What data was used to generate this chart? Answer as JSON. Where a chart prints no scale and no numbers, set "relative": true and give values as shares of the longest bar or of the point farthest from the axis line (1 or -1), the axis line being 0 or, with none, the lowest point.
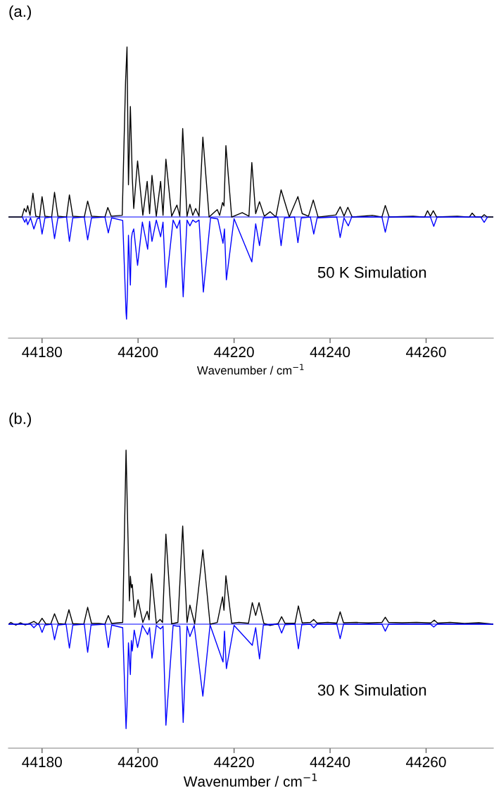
{
  "chart_data": [
    {
      "type": "line",
      "title": "(a.)",
      "xlabel": "Wavenumber / cm$^{−1}$",
      "relative": true,
      "annotations": [
        "50 K Simulation"
      ],
      "xlim": [
        44173,
        44274
      ],
      "xticks": [
        44180,
        44200,
        44220,
        44240,
        44260
      ],
      "series": [
        {
          "color": "#000000",
          "x": [
            44173,
            44175.8,
            44176.3,
            44176.7,
            44177.0,
            44177.5,
            44178.1,
            44178.7,
            44179.5,
            44180.0,
            44180.6,
            44182.0,
            44182.6,
            44183.3,
            44185.1,
            44185.7,
            44186.4,
            44188.8,
            44189.5,
            44190.3,
            44193.1,
            44193.7,
            44194.4,
            44196.7,
            44197.4,
            44197.7,
            44198.0,
            44198.4,
            44198.8,
            44199.1,
            44199.9,
            44201.0,
            44201.9,
            44202.4,
            44202.9,
            44203.8,
            44204.7,
            44205.2,
            44205.8,
            44207.0,
            44208.1,
            44208.7,
            44209.3,
            44210.2,
            44210.8,
            44211.4,
            44212.0,
            44212.7,
            44213.5,
            44214.8,
            44216.5,
            44217.0,
            44217.6,
            44217.9,
            44218.3,
            44219.5,
            44221.7,
            44223.1,
            44223.7,
            44224.5,
            44225.3,
            44226.3,
            44227.5,
            44228.7,
            44229.8,
            44231.5,
            44233.3,
            44234.2,
            44235.5,
            44236.5,
            44237.5,
            44241.2,
            44242.1,
            44242.9,
            44243.7,
            44244.6,
            44248.8,
            44250.8,
            44251.5,
            44252.3,
            44257.3,
            44259.7,
            44260.3,
            44260.9,
            44261.5,
            44262.2,
            44266.5,
            44269.0,
            44269.6,
            44270.3,
            44271.6,
            44272.1,
            44272.7,
            44274
          ],
          "values": [
            0,
            0,
            0.05,
            0.03,
            0.067,
            0.01,
            0.14,
            0.005,
            0,
            0.12,
            0.005,
            0,
            0.145,
            0.005,
            0,
            0.13,
            0.005,
            0,
            0.094,
            0.005,
            0,
            0.056,
            0.005,
            0.01,
            0.8,
            1.0,
            0.19,
            0.65,
            0.23,
            0.05,
            0.33,
            0.01,
            0.21,
            0.02,
            0.245,
            0.005,
            0.21,
            0.01,
            0.34,
            0.005,
            0.07,
            0.005,
            0.52,
            0.005,
            0.075,
            0.01,
            0.05,
            0.005,
            0.47,
            0,
            0.044,
            0.01,
            0.085,
            0.065,
            0.42,
            0,
            0.026,
            0.005,
            0.32,
            0.02,
            0.09,
            0.005,
            0.031,
            0,
            0.16,
            0,
            0.12,
            0.02,
            0.005,
            0.1,
            0,
            0.012,
            0.06,
            0.005,
            0.057,
            0,
            0.01,
            0,
            0.068,
            0,
            0.005,
            0,
            0.037,
            0.005,
            0.037,
            0,
            0.005,
            0,
            0.023,
            0,
            0,
            0.014,
            0,
            0
          ]
        },
        {
          "color": "#0000ff",
          "x": [
            44175.9,
            44176.4,
            44176.7,
            44177.0,
            44177.6,
            44178.3,
            44179.0,
            44179.5,
            44180.0,
            44180.6,
            44182.0,
            44182.6,
            44183.3,
            44185.1,
            44185.7,
            44186.4,
            44188.8,
            44189.5,
            44190.3,
            44193.1,
            44193.8,
            44194.5,
            44196.8,
            44197.5,
            44197.6,
            44197.8,
            44198.0,
            44198.4,
            44198.6,
            44198.8,
            44199.1,
            44199.9,
            44200.9,
            44202.0,
            44202.4,
            44202.9,
            44203.8,
            44204.7,
            44205.2,
            44205.8,
            44207.3,
            44208.1,
            44208.7,
            44209.4,
            44210.2,
            44210.8,
            44211.4,
            44212.0,
            44212.7,
            44213.6,
            44215.1,
            44216.6,
            44217.7,
            44218.0,
            44218.4,
            44220.0,
            44223.7,
            44224.5,
            44225.3,
            44226.1,
            44229.1,
            44229.8,
            44230.5,
            44232.6,
            44233.3,
            44234.0,
            44235.9,
            44236.6,
            44237.3,
            44241.4,
            44242.1,
            44242.9,
            44243.8,
            44244.5,
            44250.8,
            44251.5,
            44252.2,
            44260.9,
            44261.6,
            44262.3,
            44271.4,
            44272.1,
            44272.8
          ],
          "values": [
            0,
            -0.031,
            -0.01,
            -0.045,
            -0.005,
            -0.07,
            -0.01,
            -0.005,
            -0.1,
            -0.005,
            0,
            -0.127,
            -0.005,
            0,
            -0.143,
            -0.005,
            0,
            -0.134,
            -0.005,
            0,
            -0.093,
            -0.005,
            -0.02,
            -0.564,
            -0.6,
            -0.43,
            -0.107,
            -0.4,
            -0.13,
            -0.093,
            -0.07,
            -0.284,
            -0.03,
            -0.189,
            -0.025,
            -0.143,
            -0.018,
            -0.116,
            -0.03,
            -0.414,
            -0.018,
            -0.066,
            -0.018,
            -0.469,
            -0.018,
            -0.052,
            -0.018,
            -0.031,
            -0.018,
            -0.441,
            -0.004,
            -0.011,
            -0.154,
            -0.07,
            -0.369,
            -0.01,
            -0.264,
            -0.04,
            -0.168,
            -0.005,
            0,
            -0.168,
            -0.005,
            0,
            -0.15,
            -0.005,
            0,
            -0.1,
            -0.005,
            0,
            -0.12,
            -0.005,
            -0.052,
            0,
            0,
            -0.089,
            0,
            0,
            -0.055,
            0,
            0,
            -0.031,
            0
          ]
        }
      ],
      "ref_lines": [
        {
          "axis": "y",
          "value": 0,
          "color": "#0000ff"
        }
      ]
    },
    {
      "type": "line",
      "title": "(b.)",
      "xlabel": "Wavenumber / cm$^{−1}$",
      "relative": true,
      "annotations": [
        "30 K Simulation"
      ],
      "xlim": [
        44173,
        44274
      ],
      "xticks": [
        44180,
        44200,
        44220,
        44240,
        44260
      ],
      "series": [
        {
          "color": "#000000",
          "x": [
            44173,
            44173.5,
            44174.5,
            44175.5,
            44176.5,
            44177.5,
            44178.3,
            44179.2,
            44180.0,
            44180.8,
            44181.8,
            44182.6,
            44183.4,
            44184.8,
            44185.6,
            44186.4,
            44188.7,
            44189.5,
            44190.3,
            44191.8,
            44193.1,
            44193.8,
            44194.5,
            44196.8,
            44197.5,
            44198.2,
            44198.4,
            44198.6,
            44198.8,
            44199.3,
            44200.0,
            44201.0,
            44201.9,
            44202.3,
            44202.8,
            44203.8,
            44204.6,
            44205.1,
            44205.8,
            44207.0,
            44208.3,
            44209.3,
            44210.2,
            44210.8,
            44211.8,
            44213.5,
            44215.0,
            44216.5,
            44217.6,
            44217.9,
            44218.3,
            44219.5,
            44221.0,
            44223.0,
            44223.8,
            44224.5,
            44225.2,
            44226.2,
            44227.5,
            44229.2,
            44229.9,
            44230.6,
            44232.7,
            44233.4,
            44234.2,
            44235.9,
            44236.6,
            44237.3,
            44239.5,
            44241.4,
            44242.1,
            44242.8,
            44245.5,
            44248.0,
            44250.8,
            44251.5,
            44252.2,
            44255.0,
            44258.0,
            44261.0,
            44261.7,
            44262.4,
            44265.0,
            44268.0,
            44271.0,
            44274
          ],
          "values": [
            0,
            0.01,
            -0.005,
            0.008,
            -0.004,
            0.006,
            0.016,
            0,
            0.034,
            0.002,
            0,
            0.06,
            0.003,
            0,
            0.083,
            0.003,
            0,
            0.097,
            0.005,
            0.004,
            0,
            0.05,
            0.004,
            0.01,
            1.0,
            0.134,
            0.275,
            0.21,
            0.228,
            0.04,
            0.141,
            0.01,
            0.074,
            0.025,
            0.29,
            0.005,
            0.027,
            0.01,
            0.517,
            0.002,
            0.01,
            0.564,
            0.01,
            0.11,
            0.002,
            0.427,
            0,
            0.01,
            0.157,
            0.08,
            0.278,
            0.005,
            0.01,
            0.005,
            0.124,
            0.05,
            0.124,
            0.005,
            -0.007,
            0.004,
            0.043,
            0.005,
            0.005,
            0.105,
            0.007,
            0.01,
            0.027,
            0.006,
            0.01,
            0.006,
            0.071,
            0.008,
            0.01,
            0.007,
            0.01,
            0.04,
            0.01,
            0.008,
            0.01,
            0.007,
            0.023,
            0.006,
            0.01,
            0.004,
            0.008,
            0
          ]
        },
        {
          "color": "#0000ff",
          "x": [
            44173,
            44177.6,
            44178.3,
            44179.0,
            44179.4,
            44180.0,
            44180.6,
            44182.0,
            44182.6,
            44183.3,
            44185.0,
            44185.7,
            44186.4,
            44188.8,
            44189.5,
            44190.2,
            44193.1,
            44193.8,
            44194.5,
            44196.8,
            44197.5,
            44197.7,
            44198.0,
            44198.4,
            44198.6,
            44198.8,
            44199.2,
            44199.9,
            44200.9,
            44202.0,
            44202.4,
            44202.9,
            44203.8,
            44204.7,
            44205.2,
            44205.8,
            44207.3,
            44208.1,
            44208.7,
            44209.4,
            44210.2,
            44210.8,
            44211.7,
            44213.5,
            44215.0,
            44217.7,
            44218.0,
            44218.4,
            44220.0,
            44223.8,
            44224.5,
            44225.3,
            44226.1,
            44229.2,
            44229.9,
            44230.6,
            44232.7,
            44233.4,
            44234.1,
            44235.9,
            44236.6,
            44237.3,
            44241.4,
            44242.1,
            44242.8,
            44250.8,
            44251.5,
            44252.2,
            44260.9,
            44261.6,
            44262.3,
            44274
          ],
          "values": [
            0,
            0,
            -0.02,
            0,
            -0.003,
            -0.047,
            -0.005,
            0,
            -0.089,
            -0.005,
            0,
            -0.137,
            -0.005,
            0,
            -0.161,
            -0.005,
            0,
            -0.134,
            -0.005,
            -0.02,
            -0.6,
            -0.47,
            -0.107,
            -0.289,
            -0.094,
            -0.154,
            -0.034,
            -0.134,
            -0.007,
            -0.06,
            -0.02,
            -0.195,
            -0.007,
            -0.027,
            -0.011,
            -0.58,
            -0.007,
            -0.011,
            -0.011,
            -0.564,
            -0.011,
            -0.071,
            -0.007,
            -0.413,
            -0.004,
            -0.217,
            -0.04,
            -0.255,
            -0.007,
            -0.121,
            -0.02,
            -0.199,
            -0.005,
            0,
            -0.051,
            -0.003,
            0,
            -0.141,
            -0.003,
            0,
            -0.02,
            0,
            0,
            -0.083,
            0,
            0,
            -0.04,
            0,
            0,
            -0.016,
            0,
            0
          ]
        }
      ],
      "ref_lines": [
        {
          "axis": "y",
          "value": 0,
          "color": "#0000ff"
        }
      ]
    }
  ]
}
